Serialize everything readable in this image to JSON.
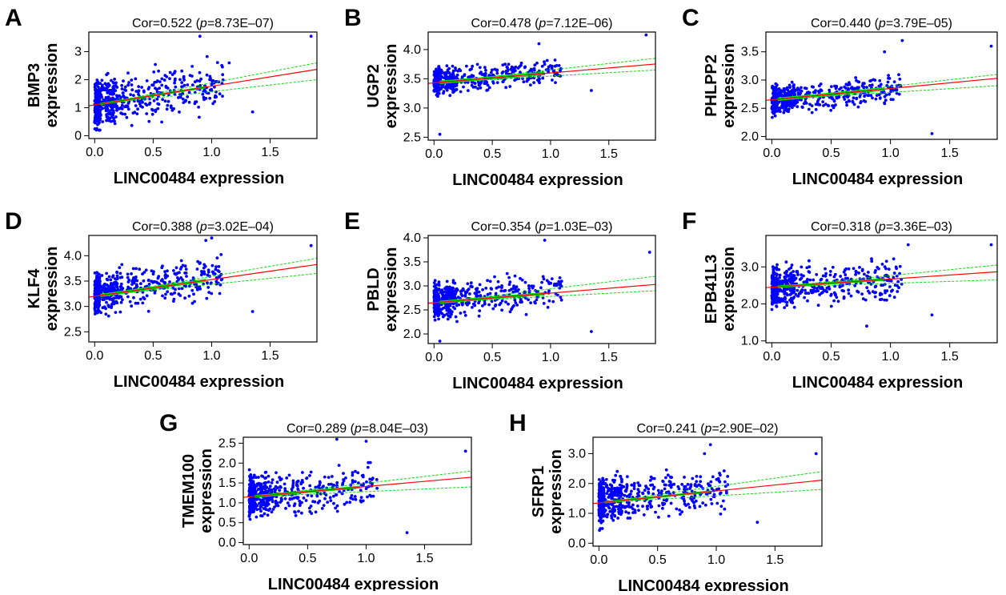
{
  "figure": {
    "style": {
      "point_color": "#0000ff",
      "fit_color": "#ff0000",
      "ci_color": "#00e000",
      "frame_color": "#000000"
    }
  },
  "chart_data": [
    {
      "panel": "A",
      "type": "scatter",
      "gene": "BMP3",
      "title_prefix": "Cor=0.522 (",
      "title_p": "p",
      "title_suffix": "=8.73E–07)",
      "ylabel": "expression",
      "xlabel": "LINC00484 expression",
      "xlim": [
        -0.05,
        1.9
      ],
      "ylim": [
        -0.1,
        3.7
      ],
      "xticks": [
        "0.0",
        "0.5",
        "1.0",
        "1.5"
      ],
      "yticks": [
        "0",
        "1",
        "2",
        "3"
      ],
      "fit": {
        "intercept": 1.1,
        "slope": 0.667,
        "ci_low_end": 2.0,
        "ci_high_end": 2.6
      },
      "scatter": {
        "n": 560,
        "base": 1.1,
        "slope": 0.667,
        "noise": 0.7,
        "min": 0.0,
        "max": 3.65,
        "seed": 11
      },
      "highlight_points": [
        [
          1.85,
          3.55
        ],
        [
          1.35,
          0.85
        ],
        [
          0.9,
          3.55
        ],
        [
          1.15,
          2.6
        ]
      ]
    },
    {
      "panel": "B",
      "type": "scatter",
      "gene": "UGP2",
      "title_prefix": "Cor=0.478 (",
      "title_p": "p",
      "title_suffix": "=7.12E–06)",
      "ylabel": "expression",
      "xlabel": "LINC00484 expression",
      "xlim": [
        -0.05,
        1.9
      ],
      "ylim": [
        2.45,
        4.3
      ],
      "xticks": [
        "0.0",
        "0.5",
        "1.0",
        "1.5"
      ],
      "yticks": [
        "2.5",
        "3.0",
        "3.5",
        "4.0"
      ],
      "fit": {
        "intercept": 3.43,
        "slope": 0.17,
        "ci_low_end": 3.65,
        "ci_high_end": 3.85
      },
      "scatter": {
        "n": 560,
        "base": 3.45,
        "slope": 0.17,
        "noise": 0.17,
        "min": 2.55,
        "max": 4.25,
        "seed": 23
      },
      "highlight_points": [
        [
          1.82,
          4.25
        ],
        [
          1.35,
          3.3
        ],
        [
          0.05,
          2.55
        ],
        [
          0.9,
          4.1
        ]
      ]
    },
    {
      "panel": "C",
      "type": "scatter",
      "gene": "PHLPP2",
      "title_prefix": "Cor=0.440 (",
      "title_p": "p",
      "title_suffix": "=3.79E–05)",
      "ylabel": "expression",
      "xlabel": "LINC00484 expression",
      "xlim": [
        -0.05,
        1.9
      ],
      "ylim": [
        1.95,
        3.85
      ],
      "xticks": [
        "0.0",
        "0.5",
        "1.0",
        "1.5"
      ],
      "yticks": [
        "2.0",
        "2.5",
        "3.0",
        "3.5"
      ],
      "fit": {
        "intercept": 2.65,
        "slope": 0.2,
        "ci_low_end": 2.9,
        "ci_high_end": 3.1
      },
      "scatter": {
        "n": 560,
        "base": 2.65,
        "slope": 0.2,
        "noise": 0.2,
        "min": 2.05,
        "max": 3.75,
        "seed": 37
      },
      "highlight_points": [
        [
          1.85,
          3.6
        ],
        [
          1.35,
          2.05
        ],
        [
          1.1,
          3.7
        ],
        [
          0.95,
          3.5
        ]
      ]
    },
    {
      "panel": "D",
      "type": "scatter",
      "gene": "KLF4",
      "title_prefix": "Cor=0.388 (",
      "title_p": "p",
      "title_suffix": "=3.02E–04)",
      "ylabel": "expression",
      "xlabel": "LINC00484 expression",
      "xlim": [
        -0.05,
        1.9
      ],
      "ylim": [
        2.3,
        4.4
      ],
      "xticks": [
        "0.0",
        "0.5",
        "1.0",
        "1.5"
      ],
      "yticks": [
        "2.5",
        "3.0",
        "3.5",
        "4.0"
      ],
      "fit": {
        "intercept": 3.2,
        "slope": 0.33,
        "ci_low_end": 3.65,
        "ci_high_end": 3.95
      },
      "scatter": {
        "n": 560,
        "base": 3.25,
        "slope": 0.33,
        "noise": 0.32,
        "min": 2.4,
        "max": 4.35,
        "seed": 41
      },
      "highlight_points": [
        [
          1.85,
          4.2
        ],
        [
          1.35,
          2.9
        ],
        [
          1.0,
          4.35
        ],
        [
          0.95,
          4.3
        ]
      ]
    },
    {
      "panel": "E",
      "type": "scatter",
      "gene": "PBLD",
      "title_prefix": "Cor=0.354 (",
      "title_p": "p",
      "title_suffix": "=1.03E–03)",
      "ylabel": "expression",
      "xlabel": "LINC00484 expression",
      "xlim": [
        -0.05,
        1.9
      ],
      "ylim": [
        1.8,
        4.05
      ],
      "xticks": [
        "0.0",
        "0.5",
        "1.0",
        "1.5"
      ],
      "yticks": [
        "2.0",
        "2.5",
        "3.0",
        "3.5",
        "4.0"
      ],
      "fit": {
        "intercept": 2.65,
        "slope": 0.2,
        "ci_low_end": 2.9,
        "ci_high_end": 3.2
      },
      "scatter": {
        "n": 560,
        "base": 2.7,
        "slope": 0.2,
        "noise": 0.3,
        "min": 1.85,
        "max": 3.95,
        "seed": 53
      },
      "highlight_points": [
        [
          1.85,
          3.7
        ],
        [
          1.35,
          2.05
        ],
        [
          0.95,
          3.95
        ],
        [
          0.05,
          1.85
        ]
      ]
    },
    {
      "panel": "F",
      "type": "scatter",
      "gene": "EPB41L3",
      "title_prefix": "Cor=0.318 (",
      "title_p": "p",
      "title_suffix": "=3.36E–03)",
      "ylabel": "expression",
      "xlabel": "LINC00484 expression",
      "xlim": [
        -0.05,
        1.9
      ],
      "ylim": [
        0.95,
        3.85
      ],
      "xticks": [
        "0.0",
        "0.5",
        "1.0",
        "1.5"
      ],
      "yticks": [
        "1.0",
        "2.0",
        "3.0"
      ],
      "fit": {
        "intercept": 2.45,
        "slope": 0.22,
        "ci_low_end": 2.65,
        "ci_high_end": 3.05
      },
      "scatter": {
        "n": 560,
        "base": 2.45,
        "slope": 0.22,
        "noise": 0.42,
        "min": 1.05,
        "max": 3.75,
        "seed": 67
      },
      "highlight_points": [
        [
          1.85,
          3.6
        ],
        [
          1.35,
          1.7
        ],
        [
          1.15,
          3.6
        ],
        [
          0.8,
          1.4
        ]
      ]
    },
    {
      "panel": "G",
      "type": "scatter",
      "gene": "TMEM100",
      "title_prefix": "Cor=0.289 (",
      "title_p": "p",
      "title_suffix": "=8.04E–03)",
      "ylabel": "expression",
      "xlabel": "LINC00484 expression",
      "xlim": [
        -0.05,
        1.9
      ],
      "ylim": [
        -0.05,
        2.65
      ],
      "xticks": [
        "0.0",
        "0.5",
        "1.0",
        "1.5"
      ],
      "yticks": [
        "0.0",
        "0.5",
        "1.0",
        "1.5",
        "2.0",
        "2.5"
      ],
      "fit": {
        "intercept": 1.15,
        "slope": 0.26,
        "ci_low_end": 1.4,
        "ci_high_end": 1.8
      },
      "scatter": {
        "n": 560,
        "base": 1.15,
        "slope": 0.26,
        "noise": 0.42,
        "min": 0.0,
        "max": 2.6,
        "seed": 79
      },
      "highlight_points": [
        [
          1.85,
          2.3
        ],
        [
          1.35,
          0.25
        ],
        [
          1.0,
          2.55
        ],
        [
          0.75,
          2.6
        ]
      ]
    },
    {
      "panel": "H",
      "type": "scatter",
      "gene": "SFRP1",
      "title_prefix": "Cor=0.241 (",
      "title_p": "p",
      "title_suffix": "=2.90E–02)",
      "ylabel": "expression",
      "xlabel": "LINC00484 expression",
      "xlim": [
        -0.05,
        1.9
      ],
      "ylim": [
        -0.1,
        3.55
      ],
      "xticks": [
        "0.0",
        "0.5",
        "1.0",
        "1.5"
      ],
      "yticks": [
        "0.0",
        "1.0",
        "2.0",
        "3.0"
      ],
      "fit": {
        "intercept": 1.35,
        "slope": 0.4,
        "ci_low_end": 1.8,
        "ci_high_end": 2.4
      },
      "scatter": {
        "n": 560,
        "base": 1.4,
        "slope": 0.4,
        "noise": 0.58,
        "min": 0.0,
        "max": 3.45,
        "seed": 97
      },
      "highlight_points": [
        [
          1.85,
          3.0
        ],
        [
          1.35,
          0.7
        ],
        [
          0.9,
          3.0
        ],
        [
          0.95,
          3.3
        ]
      ]
    }
  ]
}
